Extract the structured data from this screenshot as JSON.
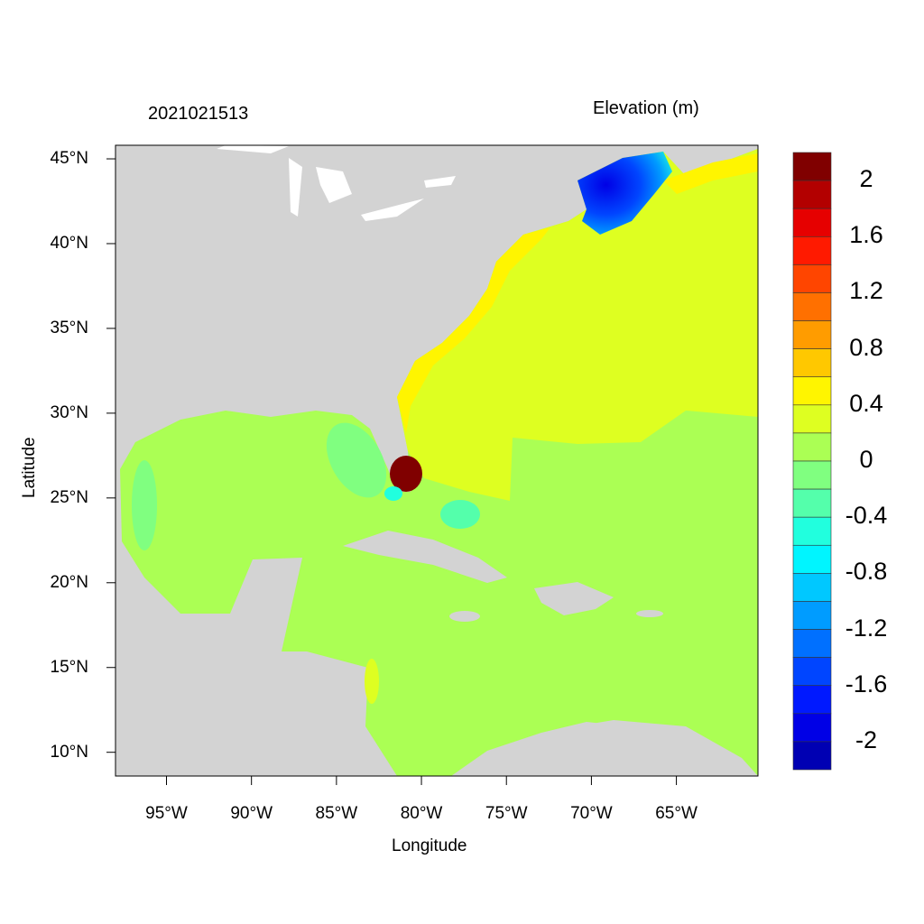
{
  "header": {
    "timestamp": "2021021513",
    "variable": "Elevation (m)"
  },
  "axes": {
    "xlabel": "Longitude",
    "ylabel": "Latitude",
    "xticks": [
      "95°W",
      "90°W",
      "85°W",
      "80°W",
      "75°W",
      "70°W",
      "65°W"
    ],
    "xtick_values": [
      -95,
      -90,
      -85,
      -80,
      -75,
      -70,
      -65
    ],
    "yticks": [
      "45°N",
      "40°N",
      "35°N",
      "30°N",
      "25°N",
      "20°N",
      "15°N",
      "10°N"
    ],
    "ytick_values": [
      45,
      40,
      35,
      30,
      25,
      20,
      15,
      10
    ],
    "lon_range": [
      -98,
      -60.2
    ],
    "lat_range": [
      8.6,
      45.8
    ]
  },
  "colorbar": {
    "labels": [
      "2",
      "1.6",
      "1.2",
      "0.8",
      "0.4",
      "0",
      "-0.4",
      "-0.8",
      "-1.2",
      "-1.6",
      "-2"
    ],
    "levels": [
      2,
      1.8,
      1.6,
      1.4,
      1.2,
      1,
      0.8,
      0.6,
      0.4,
      0.2,
      0,
      -0.2,
      -0.4,
      -0.6,
      -0.8,
      -1,
      -1.2,
      -1.4,
      -1.6,
      -1.8,
      -2
    ],
    "colors": [
      "#800000",
      "#B30000",
      "#E60000",
      "#FF1A00",
      "#FF4500",
      "#FF7000",
      "#FF9C00",
      "#FFC800",
      "#FFF500",
      "#DEFF21",
      "#ABFF54",
      "#80FF80",
      "#54FFAB",
      "#21FFDE",
      "#00F5FF",
      "#00C8FF",
      "#009CFF",
      "#0070FF",
      "#0045FF",
      "#0019FF",
      "#0000E6",
      "#0000B3"
    ]
  },
  "map_colors": {
    "land": "#D3D3D3",
    "lakes": "#FFFFFF"
  }
}
